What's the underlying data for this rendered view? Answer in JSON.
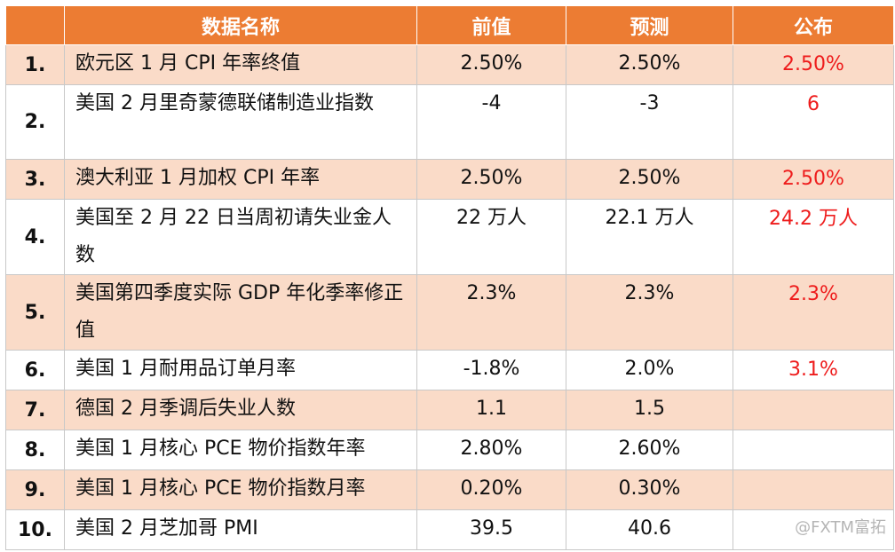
{
  "header": {
    "name": "数据名称",
    "prev": "前值",
    "forecast": "预测",
    "actual": "公布"
  },
  "rows": [
    {
      "idx": "1.",
      "name": "欧元区 1 月 CPI 年率终值",
      "prev": "2.50%",
      "forecast": "2.50%",
      "actual": "2.50%"
    },
    {
      "idx": "2.",
      "name": "美国 2 月里奇蒙德联储制造业指数",
      "prev": "-4",
      "forecast": "-3",
      "actual": "6"
    },
    {
      "idx": "3.",
      "name": "澳大利亚 1 月加权 CPI 年率",
      "prev": "2.50%",
      "forecast": "2.50%",
      "actual": "2.50%"
    },
    {
      "idx": "4.",
      "name": "美国至 2 月 22 日当周初请失业金人数",
      "prev": "22 万人",
      "forecast": "22.1 万人",
      "actual": "24.2 万人"
    },
    {
      "idx": "5.",
      "name": "美国第四季度实际 GDP 年化季率修正值",
      "prev": "2.3%",
      "forecast": "2.3%",
      "actual": "2.3%"
    },
    {
      "idx": "6.",
      "name": "美国 1 月耐用品订单月率",
      "prev": "-1.8%",
      "forecast": "2.0%",
      "actual": "3.1%"
    },
    {
      "idx": "7.",
      "name": "德国 2 月季调后失业人数",
      "prev": "1.1",
      "forecast": "1.5",
      "actual": ""
    },
    {
      "idx": "8.",
      "name": "美国 1 月核心 PCE 物价指数年率",
      "prev": "2.80%",
      "forecast": "2.60%",
      "actual": ""
    },
    {
      "idx": "9.",
      "name": "美国 1 月核心 PCE 物价指数月率",
      "prev": "0.20%",
      "forecast": "0.30%",
      "actual": ""
    },
    {
      "idx": "10.",
      "name": "美国 2 月芝加哥 PMI",
      "prev": "39.5",
      "forecast": "40.6",
      "actual": ""
    }
  ],
  "watermark": "@FXTM富拓",
  "colors": {
    "header_bg": "#ec7c33",
    "row_shade": "#fadbc8",
    "actual_text": "#ee1c1c"
  }
}
